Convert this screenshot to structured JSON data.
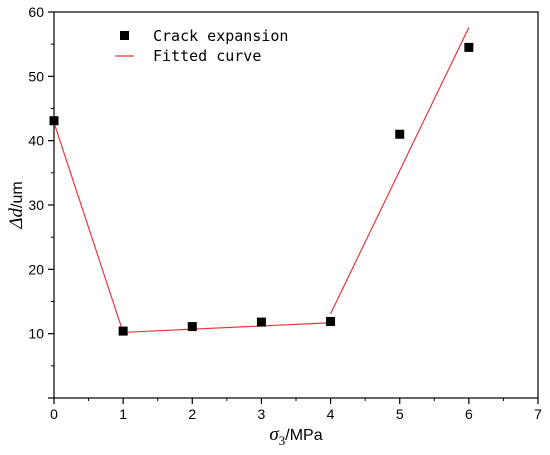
{
  "chart_data": {
    "type": "scatter",
    "x_range": [
      0,
      7
    ],
    "y_range": [
      0,
      60
    ],
    "x_ticks": [
      0,
      1,
      2,
      3,
      4,
      5,
      6,
      7
    ],
    "y_ticks": [
      10,
      20,
      30,
      40,
      50,
      60
    ],
    "xlabel": {
      "symbol": "σ",
      "subscript": "3",
      "unit": "/MPa"
    },
    "ylabel": {
      "symbol": "Δd",
      "unit": "/um"
    },
    "grid": false,
    "legend_position": "top-left",
    "series": [
      {
        "name": "Crack expansion",
        "kind": "points",
        "color": "#000000",
        "points": [
          {
            "x": 0,
            "y": 43.1
          },
          {
            "x": 1,
            "y": 10.4
          },
          {
            "x": 2,
            "y": 11.1
          },
          {
            "x": 3,
            "y": 11.8
          },
          {
            "x": 4,
            "y": 11.9
          },
          {
            "x": 5,
            "y": 41.0
          },
          {
            "x": 6,
            "y": 54.5
          }
        ]
      },
      {
        "name": "Fitted curve",
        "kind": "line",
        "color": "#e8383d",
        "segments": [
          [
            {
              "x": 0,
              "y": 42.8
            },
            {
              "x": 1,
              "y": 10.2
            }
          ],
          [
            {
              "x": 1,
              "y": 10.2
            },
            {
              "x": 4,
              "y": 11.7
            }
          ],
          [
            {
              "x": 4,
              "y": 13.1
            },
            {
              "x": 6,
              "y": 57.6
            }
          ]
        ]
      }
    ]
  }
}
